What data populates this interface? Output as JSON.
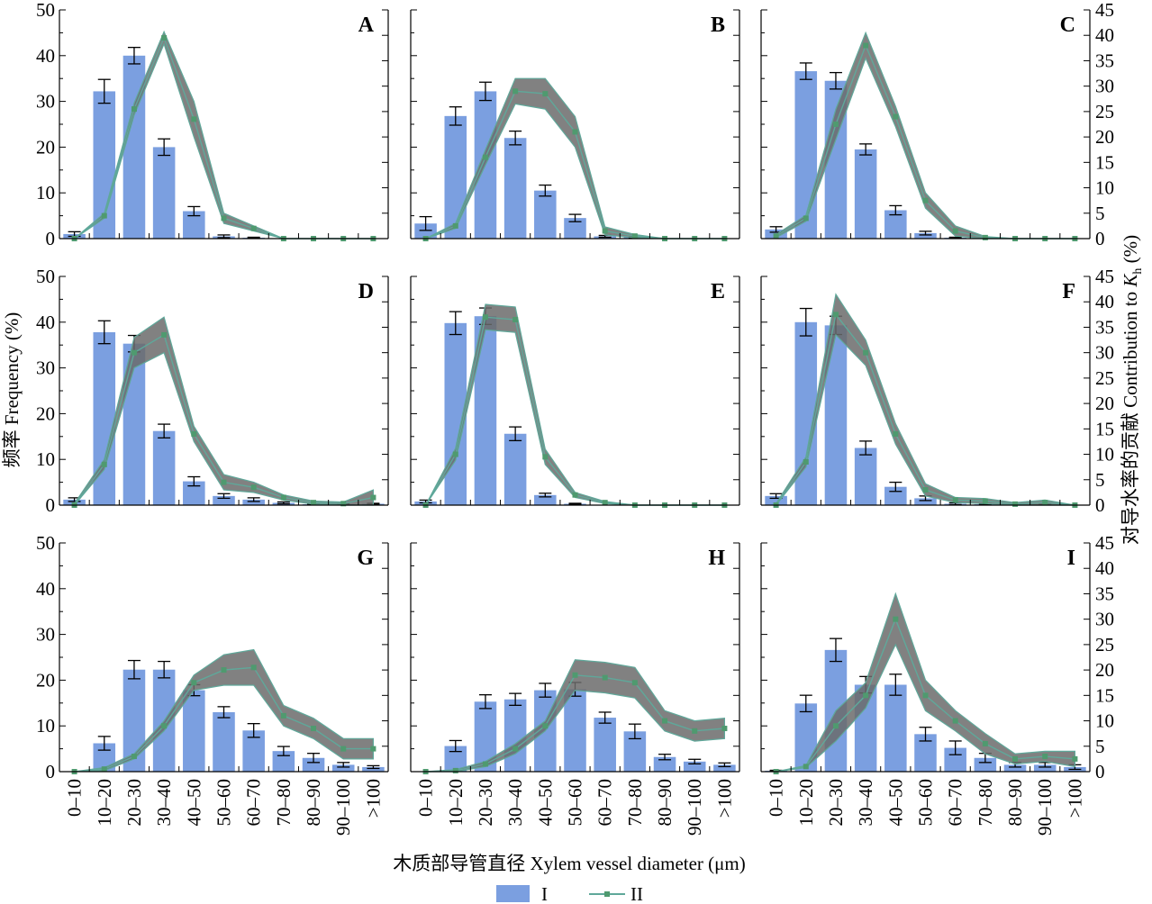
{
  "figure": {
    "xlabel": "木质部导管直径 Xylem vessel diameter (μm)",
    "ylabel_left": "频率 Frequency (%)",
    "ylabel_right_prefix": "对导水率的贡献 Contribution to ",
    "ylabel_right_var": "K",
    "ylabel_right_sub": "h",
    "ylabel_right_suffix": " (%)",
    "legend": {
      "bar": "I",
      "line": "II"
    },
    "colors": {
      "bar": "#7b9fe0",
      "band": "#6b6b6b",
      "line": "#5fa89a",
      "marker": "#4f9a6f"
    }
  },
  "chart_data": [
    {
      "type": "bar",
      "panel": "A",
      "categories": [
        "0–10",
        "10–20",
        "20–30",
        "30–40",
        "40–50",
        "50–60",
        "60–70",
        "70–80",
        "80–90",
        "90–100",
        ">100"
      ],
      "series": [
        {
          "name": "I",
          "axis": "left",
          "values": [
            1,
            32.2,
            40,
            20,
            6,
            0.5,
            0.2,
            0,
            0,
            0,
            0
          ],
          "errors": [
            0.5,
            2.6,
            1.8,
            1.8,
            1,
            0.3,
            0.1,
            0,
            0,
            0,
            0
          ]
        },
        {
          "name": "II",
          "axis": "right",
          "values": [
            0,
            4.5,
            25.5,
            39.5,
            23.5,
            4,
            2,
            0,
            0,
            0,
            0
          ],
          "band": [
            0,
            0.5,
            1.2,
            1.2,
            3.5,
            1,
            0.5,
            0,
            0,
            0,
            0
          ]
        }
      ],
      "ylim_left": [
        0,
        50
      ],
      "ylim_right": [
        0,
        45
      ]
    },
    {
      "type": "bar",
      "panel": "B",
      "categories": [
        "0–10",
        "10–20",
        "20–30",
        "30–40",
        "40–50",
        "50–60",
        "60–70",
        "70–80",
        "80–90",
        "90–100",
        ">100"
      ],
      "series": [
        {
          "name": "I",
          "axis": "left",
          "values": [
            3.3,
            26.8,
            32.2,
            22,
            10.5,
            4.5,
            0.5,
            0.3,
            0,
            0,
            0
          ],
          "errors": [
            1.5,
            2,
            2,
            1.5,
            1.2,
            0.8,
            0.2,
            0.1,
            0,
            0,
            0
          ]
        },
        {
          "name": "II",
          "axis": "right",
          "values": [
            0,
            2.5,
            16,
            29,
            28.5,
            21,
            1.5,
            0.5,
            0,
            0,
            0
          ],
          "band": [
            0,
            0.5,
            1.5,
            2.5,
            3,
            3,
            0.8,
            0.3,
            0,
            0,
            0
          ]
        }
      ],
      "ylim_left": [
        0,
        50
      ],
      "ylim_right": [
        0,
        45
      ]
    },
    {
      "type": "bar",
      "panel": "C",
      "categories": [
        "0–10",
        "10–20",
        "20–30",
        "30–40",
        "40–50",
        "50–60",
        "60–70",
        "70–80",
        "80–90",
        "90–100",
        ">100"
      ],
      "series": [
        {
          "name": "I",
          "axis": "left",
          "values": [
            2,
            36.6,
            34.5,
            19.5,
            6.2,
            1.2,
            0.2,
            0,
            0,
            0,
            0
          ],
          "errors": [
            0.6,
            1.8,
            1.8,
            1.2,
            1,
            0.4,
            0.1,
            0,
            0,
            0,
            0
          ]
        },
        {
          "name": "II",
          "axis": "right",
          "values": [
            0.5,
            4,
            22.5,
            38,
            24,
            7.5,
            1.5,
            0.2,
            0,
            0,
            0
          ],
          "band": [
            0.3,
            0.6,
            3,
            2.5,
            2,
            1.5,
            1,
            0.2,
            0,
            0,
            0
          ]
        }
      ],
      "ylim_left": [
        0,
        50
      ],
      "ylim_right": [
        0,
        45
      ]
    },
    {
      "type": "bar",
      "panel": "D",
      "categories": [
        "0–10",
        "10–20",
        "20–30",
        "30–40",
        "40–50",
        "50–60",
        "60–70",
        "70–80",
        "80–90",
        "90–100",
        ">100"
      ],
      "series": [
        {
          "name": "I",
          "axis": "left",
          "values": [
            1.2,
            37.8,
            35.3,
            16.2,
            5.2,
            2,
            1.2,
            0.5,
            0.2,
            0.2,
            0.3
          ],
          "errors": [
            0.4,
            2.5,
            1.8,
            1.5,
            1,
            0.5,
            0.4,
            0.2,
            0.1,
            0.1,
            0.1
          ]
        },
        {
          "name": "II",
          "axis": "right",
          "values": [
            0,
            8,
            30,
            33.5,
            14,
            4.5,
            3.5,
            1.5,
            0.5,
            0.3,
            1.5
          ],
          "band": [
            0.3,
            1,
            3,
            3.5,
            1.5,
            1.5,
            1,
            0.5,
            0.3,
            0.3,
            1.5
          ]
        }
      ],
      "ylim_left": [
        0,
        50
      ],
      "ylim_right": [
        0,
        45
      ]
    },
    {
      "type": "bar",
      "panel": "E",
      "categories": [
        "0–10",
        "10–20",
        "20–30",
        "30–40",
        "40–50",
        "50–60",
        "60–70",
        "70–80",
        "80–90",
        "90–100",
        ">100"
      ],
      "series": [
        {
          "name": "I",
          "axis": "left",
          "values": [
            0.8,
            39.8,
            41.3,
            15.6,
            2.2,
            0.3,
            0,
            0,
            0,
            0,
            0
          ],
          "errors": [
            0.3,
            2.5,
            1.8,
            1.5,
            0.4,
            0.1,
            0,
            0,
            0,
            0,
            0
          ]
        },
        {
          "name": "II",
          "axis": "right",
          "values": [
            0,
            10,
            37,
            36.5,
            9.5,
            2,
            0.5,
            0,
            0,
            0,
            0
          ],
          "band": [
            0,
            1.2,
            2.5,
            2.5,
            1.5,
            0.5,
            0.2,
            0,
            0,
            0,
            0
          ]
        }
      ],
      "ylim_left": [
        0,
        50
      ],
      "ylim_right": [
        0,
        45
      ]
    },
    {
      "type": "bar",
      "panel": "F",
      "categories": [
        "0–10",
        "10–20",
        "20–30",
        "30–40",
        "40–50",
        "50–60",
        "60–70",
        "70–80",
        "80–90",
        "90–100",
        ">100"
      ],
      "series": [
        {
          "name": "I",
          "axis": "left",
          "values": [
            2,
            40,
            39.3,
            12.5,
            4,
            1.5,
            0.3,
            0.2,
            0.1,
            0.1,
            0
          ],
          "errors": [
            0.5,
            3,
            2,
            1.5,
            1,
            0.5,
            0.2,
            0.1,
            0.05,
            0.05,
            0
          ]
        },
        {
          "name": "II",
          "axis": "right",
          "values": [
            0,
            8.5,
            37.5,
            30,
            14,
            3,
            1,
            0.8,
            0.2,
            0.5,
            0
          ],
          "band": [
            0.3,
            1,
            4,
            2.5,
            2,
            1.2,
            0.5,
            0.5,
            0.3,
            0.5,
            0
          ]
        }
      ],
      "ylim_left": [
        0,
        50
      ],
      "ylim_right": [
        0,
        45
      ]
    },
    {
      "type": "bar",
      "panel": "G",
      "categories": [
        "0–10",
        "10–20",
        "20–30",
        "30–40",
        "40–50",
        "50–60",
        "60–70",
        "70–80",
        "80–90",
        "90–100",
        ">100"
      ],
      "series": [
        {
          "name": "I",
          "axis": "left",
          "values": [
            0,
            6.2,
            22.3,
            22.3,
            17.8,
            13,
            9,
            4.5,
            3,
            1.5,
            1
          ],
          "errors": [
            0,
            1.5,
            2,
            1.8,
            1.2,
            1.2,
            1.5,
            1,
            1,
            0.5,
            0.3
          ]
        },
        {
          "name": "II",
          "axis": "right",
          "values": [
            0,
            0.5,
            3,
            9,
            17.5,
            20,
            20.5,
            11,
            8.5,
            4.5,
            4.5
          ],
          "band": [
            0,
            0.3,
            0.5,
            1,
            1.5,
            3,
            3.5,
            2,
            2,
            2,
            2
          ]
        }
      ],
      "ylim_left": [
        0,
        50
      ],
      "ylim_right": [
        0,
        45
      ]
    },
    {
      "type": "bar",
      "panel": "H",
      "categories": [
        "0–10",
        "10–20",
        "20–30",
        "30–40",
        "40–50",
        "50–60",
        "60–70",
        "70–80",
        "80–90",
        "90–100",
        ">100"
      ],
      "series": [
        {
          "name": "I",
          "axis": "left",
          "values": [
            0,
            5.6,
            15.3,
            15.8,
            17.8,
            18,
            11.8,
            8.8,
            3.2,
            2.2,
            1.5
          ],
          "errors": [
            0,
            1.2,
            1.5,
            1.3,
            1.5,
            1.5,
            1.2,
            1.6,
            0.6,
            0.5,
            0.4
          ]
        },
        {
          "name": "II",
          "axis": "right",
          "values": [
            0,
            0.2,
            1.5,
            4.5,
            9,
            19,
            18.5,
            17.5,
            10,
            8,
            8.5
          ],
          "band": [
            0,
            0.2,
            0.5,
            1,
            1,
            3,
            3,
            3,
            2,
            2,
            2
          ]
        }
      ],
      "ylim_left": [
        0,
        50
      ],
      "ylim_right": [
        0,
        45
      ]
    },
    {
      "type": "bar",
      "panel": "I",
      "categories": [
        "0–10",
        "10–20",
        "20–30",
        "30–40",
        "40–50",
        "50–60",
        "60–70",
        "70–80",
        "80–90",
        "90–100",
        ">100"
      ],
      "series": [
        {
          "name": "I",
          "axis": "left",
          "values": [
            0.2,
            14.9,
            26.6,
            19,
            19,
            8.2,
            5.2,
            3,
            1.5,
            1.5,
            1
          ],
          "errors": [
            0.1,
            1.8,
            2.5,
            1.8,
            2.3,
            1.5,
            1.5,
            1,
            0.5,
            0.5,
            0.5
          ]
        },
        {
          "name": "II",
          "axis": "right",
          "values": [
            0,
            1,
            9,
            15,
            30,
            15,
            10,
            5.5,
            2.5,
            3,
            2.5
          ],
          "band": [
            0,
            0.2,
            3,
            2.5,
            5,
            3,
            2,
            2,
            1,
            1,
            1.5
          ]
        }
      ],
      "ylim_left": [
        0,
        50
      ],
      "ylim_right": [
        0,
        45
      ]
    }
  ]
}
